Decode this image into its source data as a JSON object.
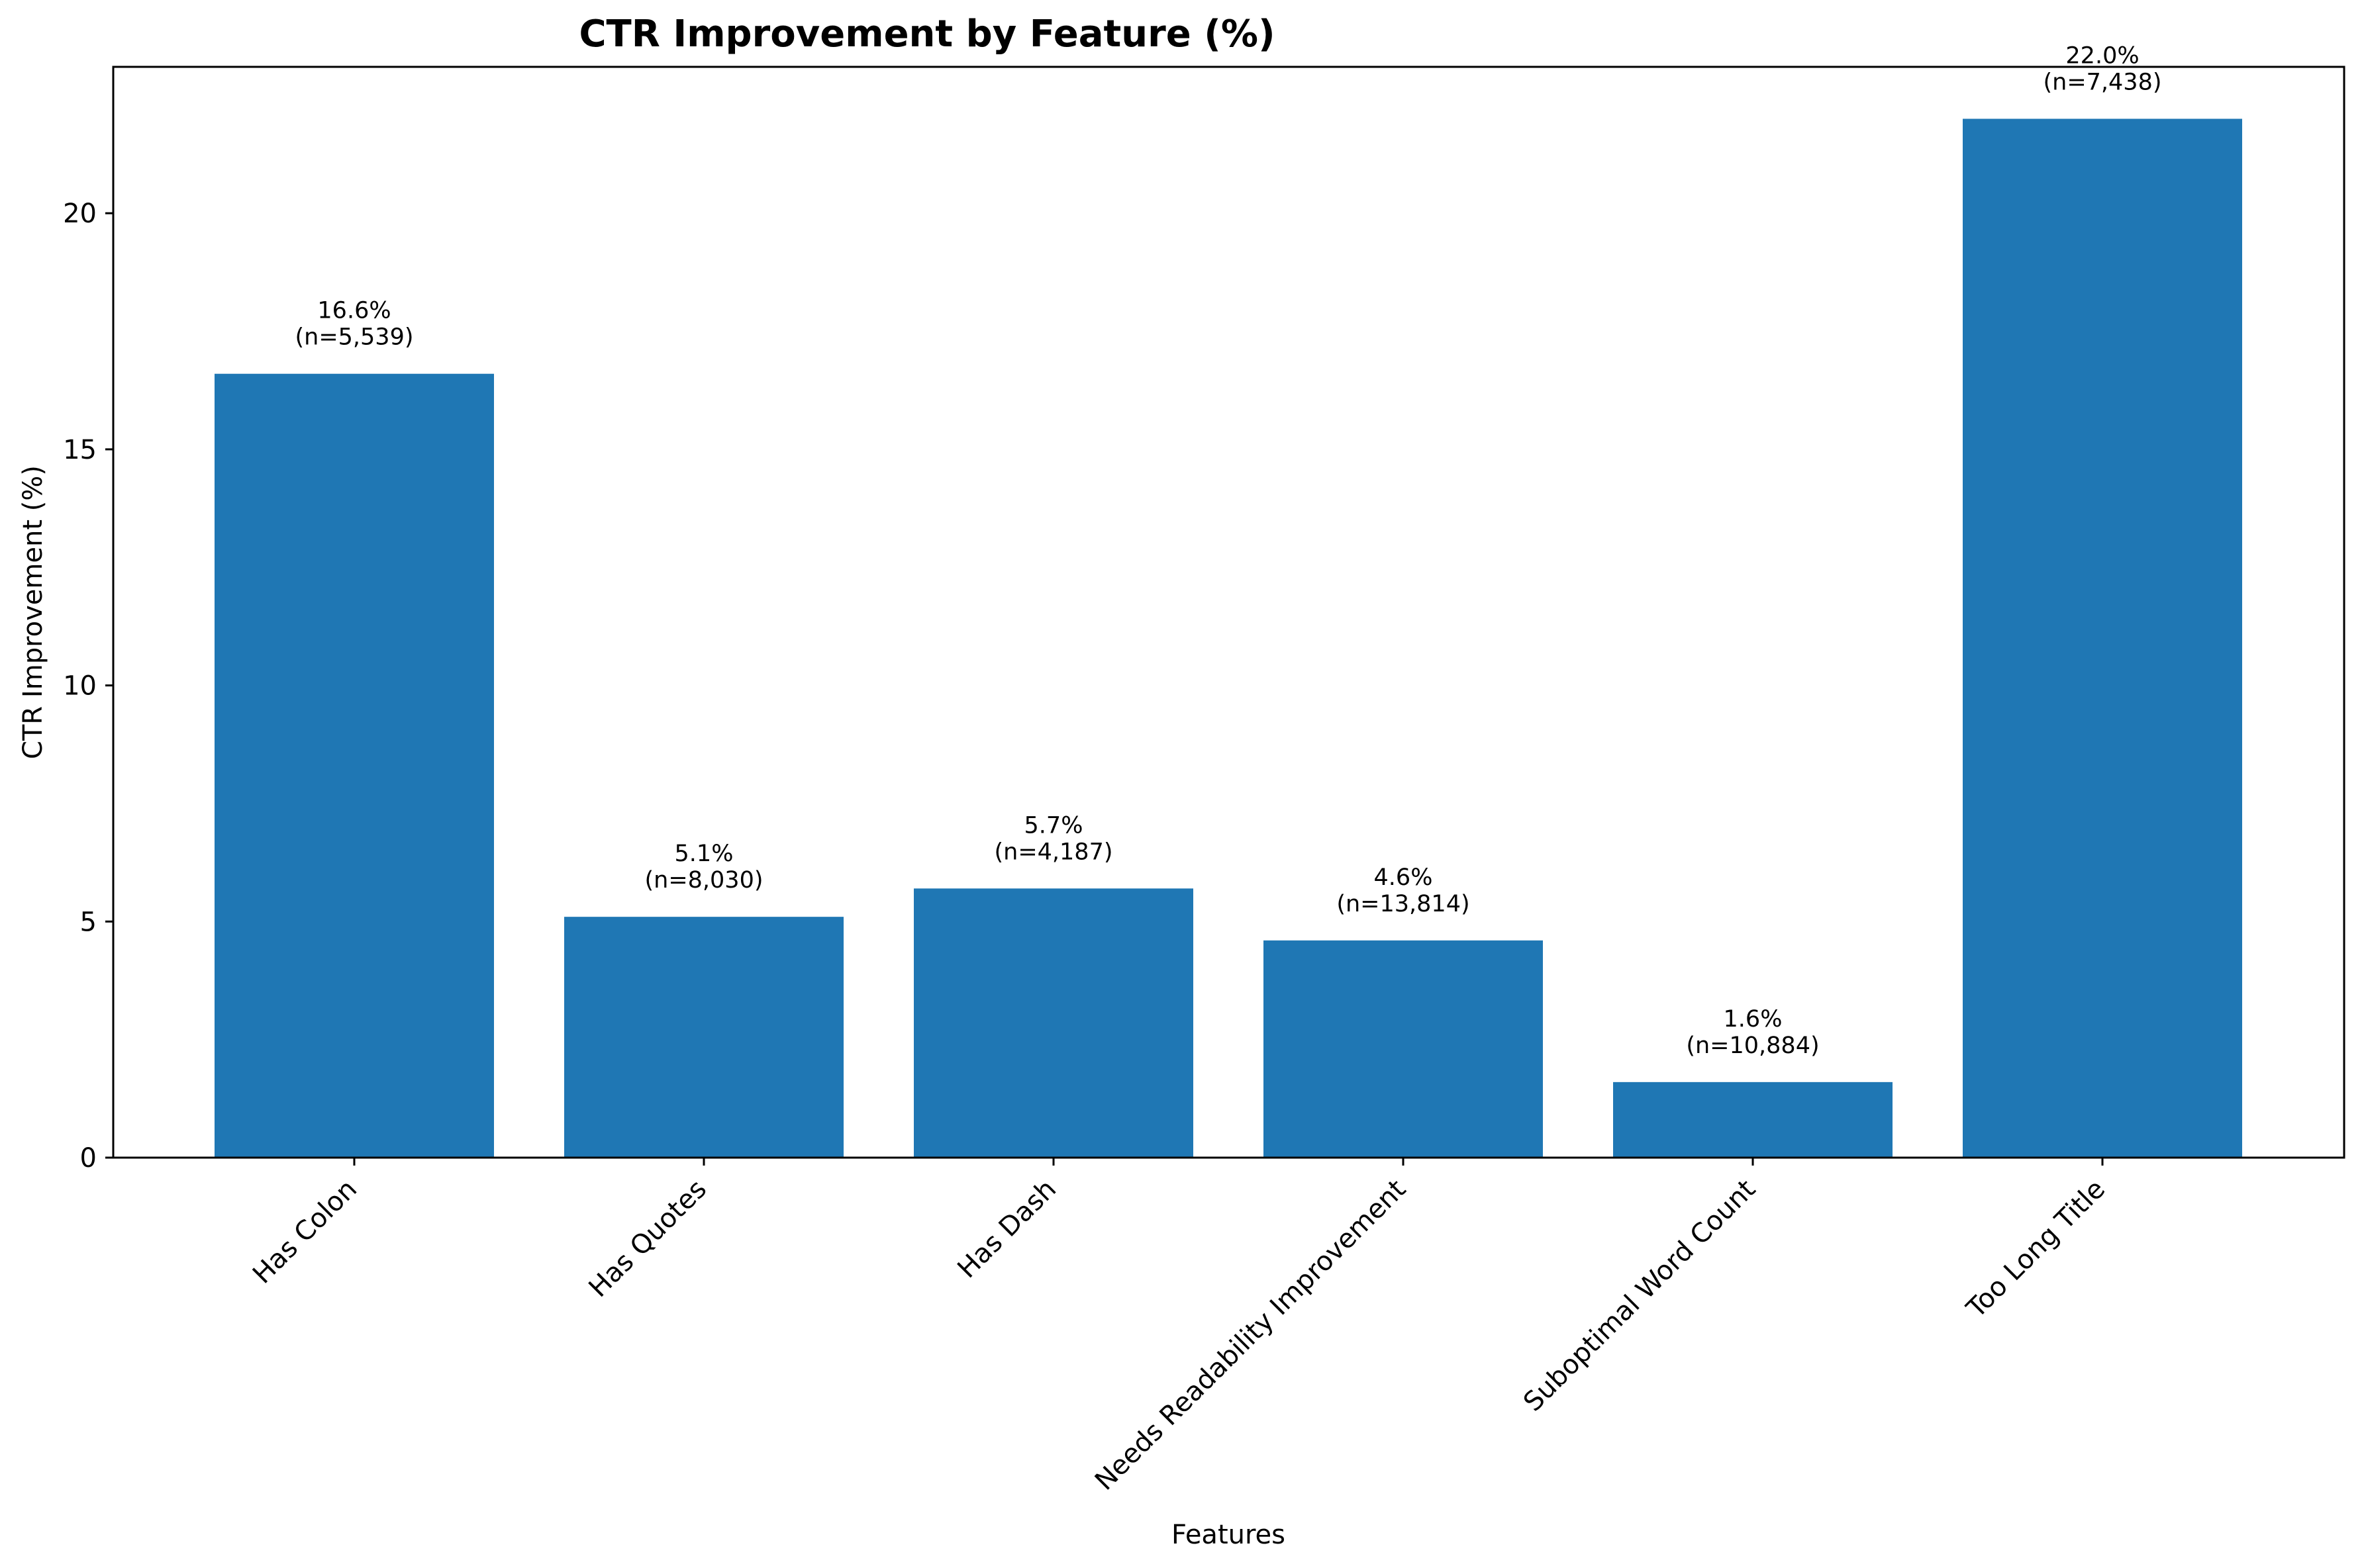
{
  "chart_data": {
    "type": "bar",
    "title": "CTR Improvement by Feature (%)",
    "xlabel": "Features",
    "ylabel": "CTR Improvement (%)",
    "categories": [
      "Has Colon",
      "Has Quotes",
      "Has Dash",
      "Needs Readability Improvement",
      "Suboptimal Word Count",
      "Too Long Title"
    ],
    "values": [
      16.6,
      5.1,
      5.7,
      4.6,
      1.6,
      22.0
    ],
    "value_labels": [
      "16.6%",
      "5.1%",
      "5.7%",
      "4.6%",
      "1.6%",
      "22.0%"
    ],
    "sample_labels": [
      "(n=5,539)",
      "(n=8,030)",
      "(n=4,187)",
      "(n=13,814)",
      "(n=10,884)",
      "(n=7,438)"
    ],
    "ylim": [
      0,
      23.1
    ],
    "yticks": [
      0,
      5,
      10,
      15,
      20
    ],
    "grid": false,
    "legend": "none",
    "bar_color": "#1f77b4"
  }
}
